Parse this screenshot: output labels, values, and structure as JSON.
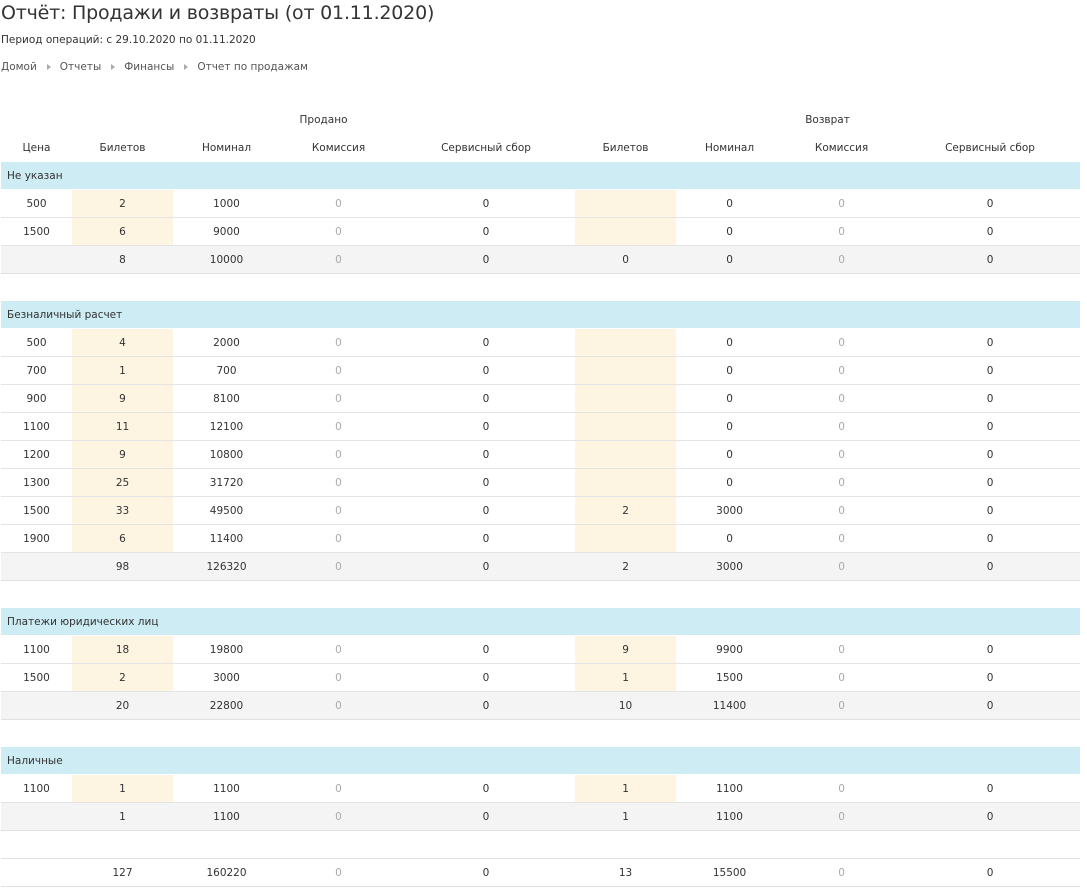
{
  "header": {
    "title": "Отчёт: Продажи и возвраты (от 01.11.2020)",
    "period": "Период операций: с 29.10.2020 по 01.11.2020"
  },
  "breadcrumbs": [
    "Домой",
    "Отчеты",
    "Финансы",
    "Отчет по продажам"
  ],
  "groups": {
    "sold": "Продано",
    "returned": "Возврат"
  },
  "columns": [
    "Цена",
    "Билетов",
    "Номинал",
    "Комиссия",
    "Сервисный сбор",
    "Билетов",
    "Номинал",
    "Комиссия",
    "Сервисный сбор"
  ],
  "sections": [
    {
      "name": "Не указан",
      "rows": [
        [
          "500",
          "2",
          "1000",
          "0",
          "0",
          "",
          "0",
          "0",
          "0"
        ],
        [
          "1500",
          "6",
          "9000",
          "0",
          "0",
          "",
          "0",
          "0",
          "0"
        ]
      ],
      "total": [
        "",
        "8",
        "10000",
        "0",
        "0",
        "0",
        "0",
        "0",
        "0"
      ]
    },
    {
      "name": "Безналичный расчет",
      "rows": [
        [
          "500",
          "4",
          "2000",
          "0",
          "0",
          "",
          "0",
          "0",
          "0"
        ],
        [
          "700",
          "1",
          "700",
          "0",
          "0",
          "",
          "0",
          "0",
          "0"
        ],
        [
          "900",
          "9",
          "8100",
          "0",
          "0",
          "",
          "0",
          "0",
          "0"
        ],
        [
          "1100",
          "11",
          "12100",
          "0",
          "0",
          "",
          "0",
          "0",
          "0"
        ],
        [
          "1200",
          "9",
          "10800",
          "0",
          "0",
          "",
          "0",
          "0",
          "0"
        ],
        [
          "1300",
          "25",
          "31720",
          "0",
          "0",
          "",
          "0",
          "0",
          "0"
        ],
        [
          "1500",
          "33",
          "49500",
          "0",
          "0",
          "2",
          "3000",
          "0",
          "0"
        ],
        [
          "1900",
          "6",
          "11400",
          "0",
          "0",
          "",
          "0",
          "0",
          "0"
        ]
      ],
      "total": [
        "",
        "98",
        "126320",
        "0",
        "0",
        "2",
        "3000",
        "0",
        "0"
      ]
    },
    {
      "name": "Платежи юридических лиц",
      "rows": [
        [
          "1100",
          "18",
          "19800",
          "0",
          "0",
          "9",
          "9900",
          "0",
          "0"
        ],
        [
          "1500",
          "2",
          "3000",
          "0",
          "0",
          "1",
          "1500",
          "0",
          "0"
        ]
      ],
      "total": [
        "",
        "20",
        "22800",
        "0",
        "0",
        "10",
        "11400",
        "0",
        "0"
      ]
    },
    {
      "name": "Наличные",
      "rows": [
        [
          "1100",
          "1",
          "1100",
          "0",
          "0",
          "1",
          "1100",
          "0",
          "0"
        ]
      ],
      "total": [
        "",
        "1",
        "1100",
        "0",
        "0",
        "1",
        "1100",
        "0",
        "0"
      ]
    }
  ],
  "grand_total": [
    "",
    "127",
    "160220",
    "0",
    "0",
    "13",
    "15500",
    "0",
    "0"
  ],
  "colors": {
    "section_bg": "#cdecf4",
    "highlight_bg": "#fdf5e2",
    "total_bg": "#f4f4f4",
    "muted_text": "#aaaaaa"
  }
}
